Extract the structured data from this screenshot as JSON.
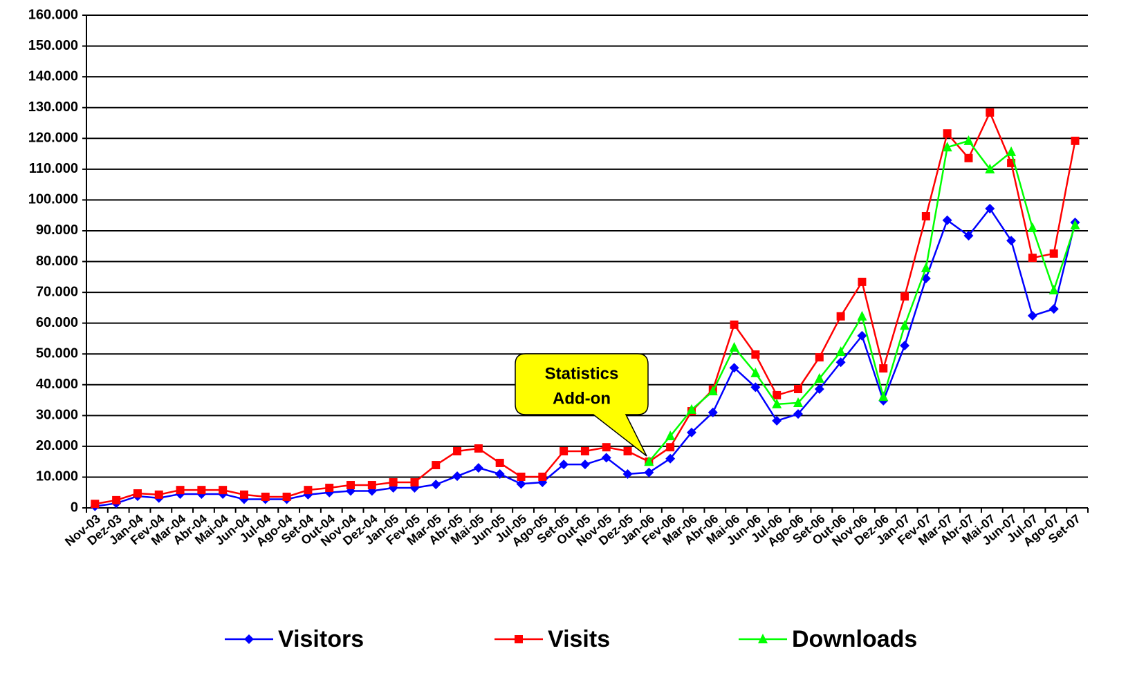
{
  "chart_data": {
    "type": "line",
    "categories": [
      "Nov-03",
      "Dez-03",
      "Jan-04",
      "Fev-04",
      "Mar-04",
      "Abr-04",
      "Mai-04",
      "Jun-04",
      "Jul-04",
      "Ago-04",
      "Set-04",
      "Out-04",
      "Nov-04",
      "Dez-04",
      "Jan-05",
      "Fev-05",
      "Mar-05",
      "Abr-05",
      "Mai-05",
      "Jun-05",
      "Jul-05",
      "Ago-05",
      "Set-05",
      "Out-05",
      "Nov-05",
      "Dez-05",
      "Jan-06",
      "Fev-06",
      "Mar-06",
      "Abr-06",
      "Mai-06",
      "Jun-06",
      "Jul-06",
      "Ago-06",
      "Set-06",
      "Out-06",
      "Nov-06",
      "Dez-06",
      "Jan-07",
      "Fev-07",
      "Mar-07",
      "Abr-07",
      "Mai-07",
      "Jun-07",
      "Jul-07",
      "Ago-07",
      "Set-07"
    ],
    "series": [
      {
        "name": "Visitors",
        "color": "#0000ff",
        "marker": "diamond",
        "values": [
          500,
          1500,
          3800,
          3200,
          4500,
          4500,
          4500,
          2800,
          2800,
          2800,
          4300,
          5000,
          5500,
          5500,
          6500,
          6500,
          7600,
          10300,
          13000,
          11000,
          7800,
          8300,
          14100,
          14100,
          16300,
          11000,
          11500,
          16000,
          24500,
          31000,
          45500,
          39200,
          28300,
          30500,
          38600,
          47300,
          55900,
          34800,
          52700,
          74500,
          93400,
          88400,
          97200,
          86800,
          62400,
          64600,
          92700
        ]
      },
      {
        "name": "Visits",
        "color": "#ff0000",
        "marker": "square",
        "values": [
          1300,
          2500,
          4700,
          4300,
          5800,
          5800,
          5800,
          4300,
          3600,
          3600,
          5800,
          6500,
          7400,
          7400,
          8300,
          8300,
          13900,
          18400,
          19300,
          14600,
          10100,
          10100,
          18400,
          18400,
          19700,
          18400,
          15000,
          19700,
          31400,
          38400,
          59500,
          49800,
          36600,
          38600,
          48900,
          62200,
          73400,
          45300,
          68700,
          94700,
          121600,
          113600,
          128400,
          112000,
          81200,
          82600,
          119200
        ]
      },
      {
        "name": "Downloads",
        "color": "#00ff00",
        "marker": "triangle",
        "values": [
          null,
          null,
          null,
          null,
          null,
          null,
          null,
          null,
          null,
          null,
          null,
          null,
          null,
          null,
          null,
          null,
          null,
          null,
          null,
          null,
          null,
          null,
          null,
          null,
          null,
          null,
          15000,
          23300,
          31900,
          37900,
          52100,
          43800,
          33700,
          34100,
          42000,
          50700,
          62200,
          36100,
          59200,
          77900,
          117100,
          119200,
          110000,
          115600,
          90900,
          70700,
          91800
        ]
      }
    ],
    "ylim": [
      0,
      160000
    ],
    "yticks": [
      0,
      {
        "value": 10000,
        "label": "10.000"
      },
      {
        "value": 20000,
        "label": "20.000"
      },
      {
        "value": 30000,
        "label": "30.000"
      },
      {
        "value": 40000,
        "label": "40.000"
      },
      {
        "value": 50000,
        "label": "50.000"
      },
      {
        "value": 60000,
        "label": "60.000"
      },
      {
        "value": 70000,
        "label": "70.000"
      },
      {
        "value": 80000,
        "label": "80.000"
      },
      {
        "value": 90000,
        "label": "90.000"
      },
      {
        "value": 100000,
        "label": "100.000"
      },
      {
        "value": 110000,
        "label": "110.000"
      },
      {
        "value": 120000,
        "label": "120.000"
      },
      {
        "value": 130000,
        "label": "130.000"
      },
      {
        "value": 140000,
        "label": "140.000"
      },
      {
        "value": 150000,
        "label": "150.000"
      },
      {
        "value": 160000,
        "label": "160.000"
      }
    ],
    "grid": true,
    "legend": "bottom",
    "annotation": [
      "Statistics",
      "Add-on"
    ]
  }
}
